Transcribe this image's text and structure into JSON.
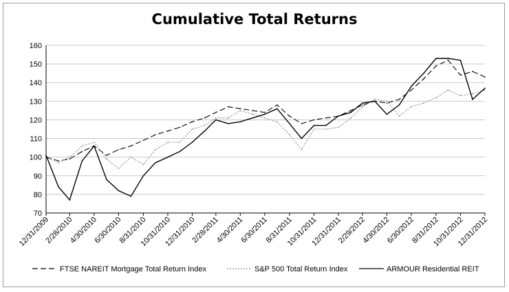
{
  "chart_data": {
    "type": "line",
    "title": "Cumulative Total Returns",
    "xlabel": "",
    "ylabel": "",
    "ylim": [
      70,
      160
    ],
    "yticks": [
      "70",
      "80",
      "90",
      "100",
      "110",
      "120",
      "130",
      "140",
      "150",
      "160"
    ],
    "xticks": [
      "12/31/2009",
      "2/28/2010",
      "4/30/2010",
      "6/30/2010",
      "8/31/2010",
      "10/31/2010",
      "12/31/2010",
      "2/28/2011",
      "4/30/2011",
      "6/30/2011",
      "8/31/2011",
      "10/31/2011",
      "12/31/2011",
      "2/29/2012",
      "4/30/2012",
      "6/30/2012",
      "8/31/2012",
      "10/31/2012",
      "12/31/2012"
    ],
    "grid": "horizontal",
    "legend_position": "bottom",
    "series": [
      {
        "name": "FTSE NAREIT Mortgage Total Return Index",
        "style": "dashed",
        "color": "#000000",
        "x": [
          "12/31/2009",
          "1/31/2010",
          "2/28/2010",
          "3/31/2010",
          "4/30/2010",
          "5/31/2010",
          "6/30/2010",
          "7/31/2010",
          "8/31/2010",
          "9/30/2010",
          "10/31/2010",
          "11/30/2010",
          "12/31/2010",
          "1/31/2011",
          "2/28/2011",
          "3/31/2011",
          "4/30/2011",
          "5/31/2011",
          "6/30/2011",
          "7/31/2011",
          "8/31/2011",
          "9/30/2011",
          "10/31/2011",
          "11/30/2011",
          "12/31/2011",
          "1/31/2012",
          "2/29/2012",
          "3/31/2012",
          "4/30/2012",
          "5/31/2012",
          "6/30/2012",
          "7/31/2012",
          "8/31/2012",
          "9/30/2012",
          "10/31/2012",
          "11/30/2012",
          "12/31/2012"
        ],
        "values": [
          100,
          98,
          99,
          103,
          106,
          101,
          104,
          106,
          109,
          112,
          114,
          116,
          119,
          121,
          124,
          127,
          126,
          125,
          124,
          128,
          122,
          118,
          120,
          121,
          122,
          125,
          128,
          130,
          129,
          131,
          136,
          142,
          149,
          152,
          144,
          146,
          143
        ]
      },
      {
        "name": "S&P 500 Total Return Index",
        "style": "dotted",
        "color": "#8a8a8a",
        "x": [
          "12/31/2009",
          "1/31/2010",
          "2/28/2010",
          "3/31/2010",
          "4/30/2010",
          "5/31/2010",
          "6/30/2010",
          "7/31/2010",
          "8/31/2010",
          "9/30/2010",
          "10/31/2010",
          "11/30/2010",
          "12/31/2010",
          "1/31/2011",
          "2/28/2011",
          "3/31/2011",
          "4/30/2011",
          "5/31/2011",
          "6/30/2011",
          "7/31/2011",
          "8/31/2011",
          "9/30/2011",
          "10/31/2011",
          "11/30/2011",
          "12/31/2011",
          "1/31/2012",
          "2/29/2012",
          "3/31/2012",
          "4/30/2012",
          "5/31/2012",
          "6/30/2012",
          "7/31/2012",
          "8/31/2012",
          "9/30/2012",
          "10/31/2012",
          "11/30/2012",
          "12/31/2012"
        ],
        "values": [
          100,
          97,
          100,
          106,
          108,
          99,
          94,
          100,
          96,
          104,
          108,
          108,
          115,
          117,
          121,
          121,
          125,
          123,
          121,
          119,
          112,
          104,
          115,
          115,
          116,
          121,
          127,
          131,
          130,
          122,
          127,
          129,
          132,
          136,
          133,
          134,
          136
        ]
      },
      {
        "name": "ARMOUR Residential REIT",
        "style": "solid",
        "color": "#000000",
        "x": [
          "12/31/2009",
          "1/31/2010",
          "2/28/2010",
          "3/31/2010",
          "4/30/2010",
          "5/31/2010",
          "6/30/2010",
          "7/31/2010",
          "8/31/2010",
          "9/30/2010",
          "10/31/2010",
          "11/30/2010",
          "12/31/2010",
          "1/31/2011",
          "2/28/2011",
          "3/31/2011",
          "4/30/2011",
          "5/31/2011",
          "6/30/2011",
          "7/31/2011",
          "8/31/2011",
          "9/30/2011",
          "10/31/2011",
          "11/30/2011",
          "12/31/2011",
          "1/31/2012",
          "2/29/2012",
          "3/31/2012",
          "4/30/2012",
          "5/31/2012",
          "6/30/2012",
          "7/31/2012",
          "8/31/2012",
          "9/30/2012",
          "10/31/2012",
          "11/30/2012",
          "12/31/2012"
        ],
        "values": [
          101,
          84,
          77,
          98,
          106,
          88,
          82,
          79,
          90,
          97,
          100,
          103,
          108,
          114,
          120,
          118,
          119,
          121,
          123,
          126,
          118,
          110,
          117,
          117,
          122,
          124,
          129,
          130,
          123,
          128,
          138,
          145,
          153,
          153,
          152,
          131,
          137
        ]
      }
    ]
  }
}
